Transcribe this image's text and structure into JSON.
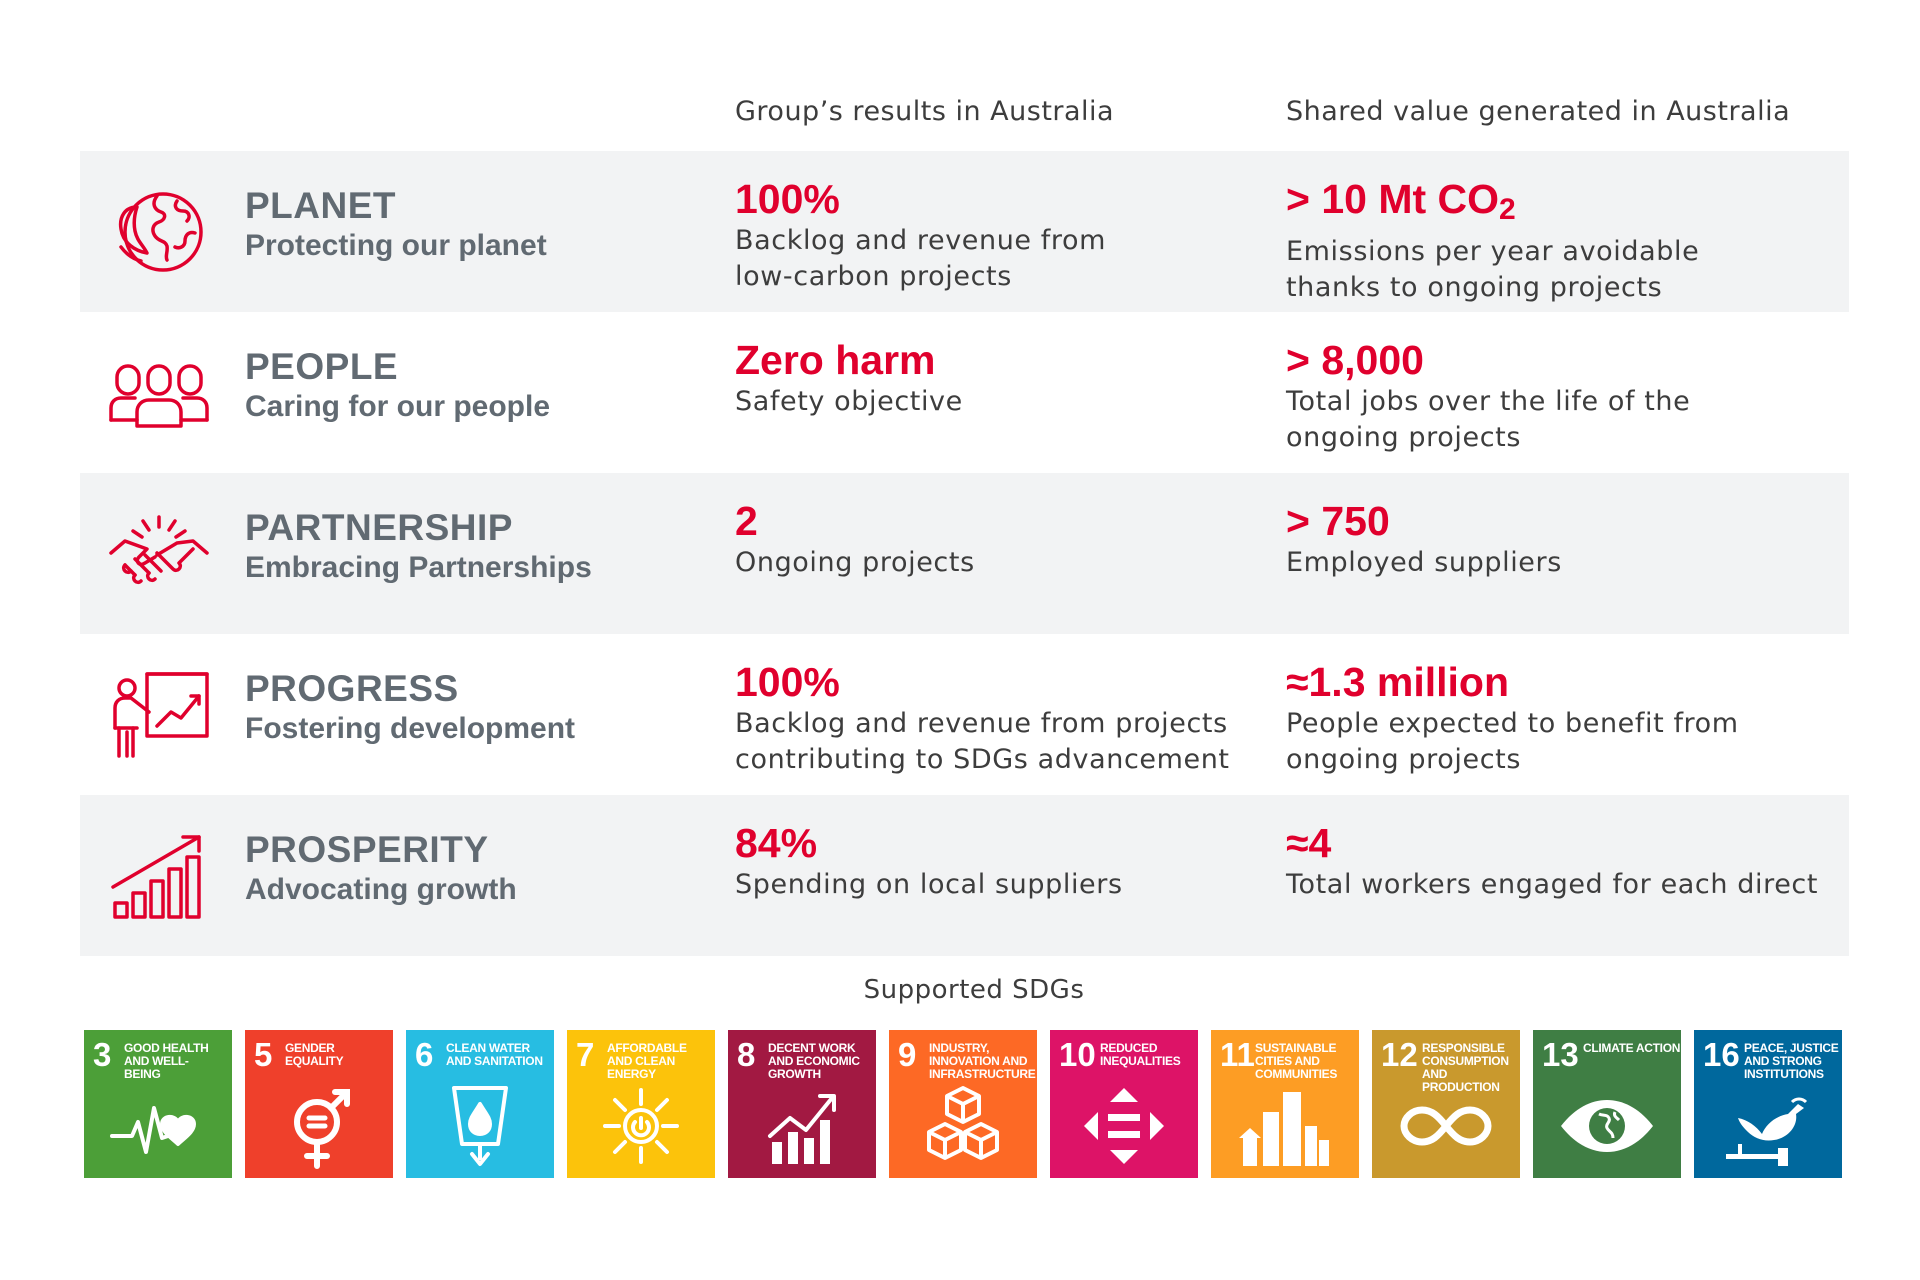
{
  "header": {
    "group_results": "Group’s results in Australia",
    "shared_value": "Shared value generated in Australia"
  },
  "accent_color": "#e0002d",
  "rows": [
    {
      "icon": "planet-icon",
      "title": "PLANET",
      "subtitle": "Protecting our planet",
      "group": {
        "value": "100%",
        "desc": "Backlog and revenue from\nlow-carbon projects"
      },
      "shared": {
        "value": "> 10 Mt CO",
        "value_sub": "2",
        "desc": "Emissions per year avoidable\nthanks to ongoing projects"
      }
    },
    {
      "icon": "people-icon",
      "title": "PEOPLE",
      "subtitle": "Caring for our people",
      "group": {
        "value": "Zero harm",
        "desc": "Safety objective"
      },
      "shared": {
        "value": "> 8,000",
        "desc": "Total jobs over the life of the\nongoing projects"
      }
    },
    {
      "icon": "handshake-icon",
      "title": "PARTNERSHIP",
      "subtitle": "Embracing Partnerships",
      "group": {
        "value": "2",
        "desc": "Ongoing projects"
      },
      "shared": {
        "value": "> 750",
        "desc": "Employed suppliers"
      }
    },
    {
      "icon": "presentation-icon",
      "title": "PROGRESS",
      "subtitle": "Fostering development",
      "group": {
        "value": "100%",
        "desc": "Backlog and revenue from projects\ncontributing to SDGs advancement"
      },
      "shared": {
        "value": "≈1.3 million",
        "desc": "People expected to benefit from\nongoing projects"
      }
    },
    {
      "icon": "growth-chart-icon",
      "title": "PROSPERITY",
      "subtitle": "Advocating growth",
      "group": {
        "value": "84%",
        "desc": "Spending on local suppliers"
      },
      "shared": {
        "value": "≈4",
        "desc": "Total workers engaged for each direct"
      }
    }
  ],
  "sdg_caption": "Supported SDGs",
  "sdgs": [
    {
      "num": "3",
      "label": "Good health and well-being",
      "color": "#4c9f38",
      "icon": "heartbeat-icon"
    },
    {
      "num": "5",
      "label": "Gender equality",
      "color": "#ef402b",
      "icon": "gender-equality-icon"
    },
    {
      "num": "6",
      "label": "Clean water and sanitation",
      "color": "#27bde2",
      "icon": "water-drop-icon"
    },
    {
      "num": "7",
      "label": "Affordable and clean energy",
      "color": "#fcc30b",
      "icon": "sun-power-icon"
    },
    {
      "num": "8",
      "label": "Decent work and economic growth",
      "color": "#a21942",
      "icon": "growth-bars-icon"
    },
    {
      "num": "9",
      "label": "Industry, innovation and infrastructure",
      "color": "#fd6925",
      "icon": "cubes-icon"
    },
    {
      "num": "10",
      "label": "Reduced inequalities",
      "color": "#dd1367",
      "icon": "equality-arrows-icon"
    },
    {
      "num": "11",
      "label": "Sustainable cities and communities",
      "color": "#fd9d24",
      "icon": "city-icon"
    },
    {
      "num": "12",
      "label": "Responsible consumption and production",
      "color": "#c9992d",
      "icon": "infinity-icon"
    },
    {
      "num": "13",
      "label": "Climate action",
      "color": "#3f7e44",
      "icon": "eye-globe-icon"
    },
    {
      "num": "16",
      "label": "Peace, justice and strong institutions",
      "color": "#00689d",
      "icon": "dove-gavel-icon"
    }
  ]
}
